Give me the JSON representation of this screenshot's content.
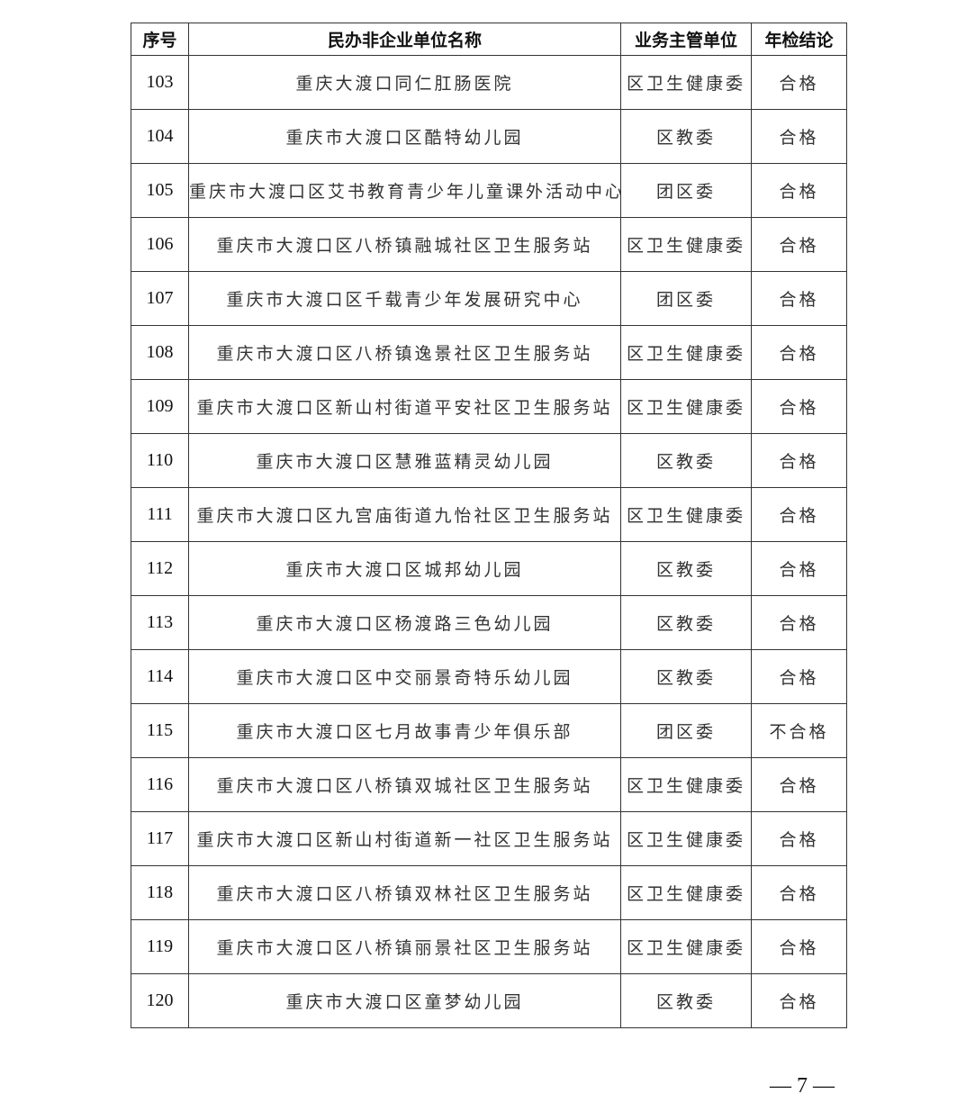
{
  "table": {
    "headers": [
      "序号",
      "民办非企业单位名称",
      "业务主管单位",
      "年检结论"
    ],
    "rows": [
      [
        "103",
        "重庆大渡口同仁肛肠医院",
        "区卫生健康委",
        "合格"
      ],
      [
        "104",
        "重庆市大渡口区酷特幼儿园",
        "区教委",
        "合格"
      ],
      [
        "105",
        "重庆市大渡口区艾书教育青少年儿童课外活动中心",
        "团区委",
        "合格"
      ],
      [
        "106",
        "重庆市大渡口区八桥镇融城社区卫生服务站",
        "区卫生健康委",
        "合格"
      ],
      [
        "107",
        "重庆市大渡口区千载青少年发展研究中心",
        "团区委",
        "合格"
      ],
      [
        "108",
        "重庆市大渡口区八桥镇逸景社区卫生服务站",
        "区卫生健康委",
        "合格"
      ],
      [
        "109",
        "重庆市大渡口区新山村街道平安社区卫生服务站",
        "区卫生健康委",
        "合格"
      ],
      [
        "110",
        "重庆市大渡口区慧雅蓝精灵幼儿园",
        "区教委",
        "合格"
      ],
      [
        "111",
        "重庆市大渡口区九宫庙街道九怡社区卫生服务站",
        "区卫生健康委",
        "合格"
      ],
      [
        "112",
        "重庆市大渡口区城邦幼儿园",
        "区教委",
        "合格"
      ],
      [
        "113",
        "重庆市大渡口区杨渡路三色幼儿园",
        "区教委",
        "合格"
      ],
      [
        "114",
        "重庆市大渡口区中交丽景奇特乐幼儿园",
        "区教委",
        "合格"
      ],
      [
        "115",
        "重庆市大渡口区七月故事青少年俱乐部",
        "团区委",
        "不合格"
      ],
      [
        "116",
        "重庆市大渡口区八桥镇双城社区卫生服务站",
        "区卫生健康委",
        "合格"
      ],
      [
        "117",
        "重庆市大渡口区新山村街道新一社区卫生服务站",
        "区卫生健康委",
        "合格"
      ],
      [
        "118",
        "重庆市大渡口区八桥镇双林社区卫生服务站",
        "区卫生健康委",
        "合格"
      ],
      [
        "119",
        "重庆市大渡口区八桥镇丽景社区卫生服务站",
        "区卫生健康委",
        "合格"
      ],
      [
        "120",
        "重庆市大渡口区童梦幼儿园",
        "区教委",
        "合格"
      ]
    ]
  },
  "footer": {
    "page_number": "— 7 —"
  }
}
